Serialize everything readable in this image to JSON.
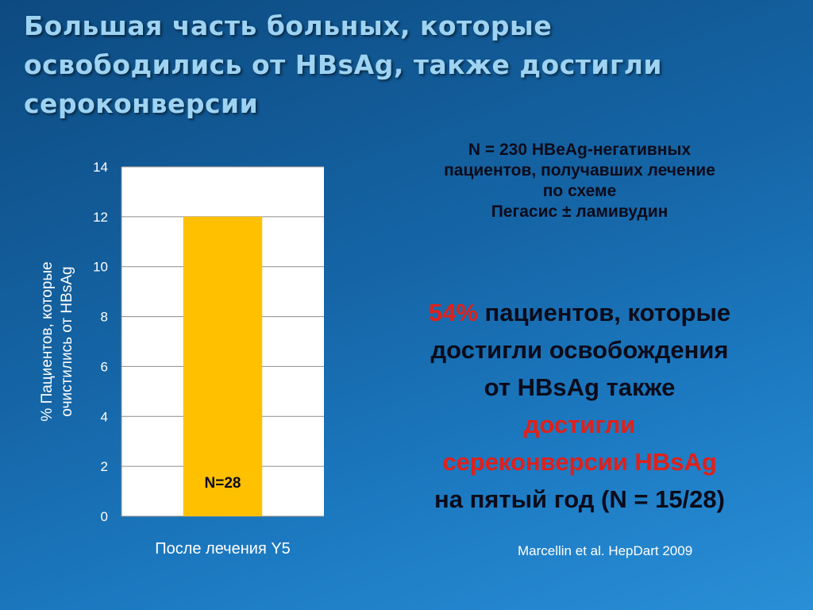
{
  "slide": {
    "title_lines": [
      "Большая часть больных, которые",
      "освободились от  HBsAg, также достигли",
      "сероконверсии"
    ],
    "info_lines": [
      "N = 230 HBeAg-негативных",
      "пациентов, получавших лечение",
      "по схеме",
      "Пегасис ± ламивудин"
    ],
    "highlight": {
      "pct": "54%",
      "line1_rest": " пациентов, которые",
      "line2": "достигли освобождения",
      "line3": "от HBsAg также",
      "line4": "достигли",
      "line5": "серeконверсии HBsAg",
      "line6": "на пятый год  (N = 15/28)"
    },
    "citation": "Marcellin et al. HepDart 2009"
  },
  "chart_data": {
    "type": "bar",
    "categories": [
      "После лечения Y5"
    ],
    "values": [
      12
    ],
    "data_labels": [
      "12%"
    ],
    "inner_labels": [
      "N=28"
    ],
    "xlabel": "После лечения Y5",
    "ylabel_lines": [
      "% Пациентов, которые",
      "очистились от  HBsAg"
    ],
    "ylim": [
      0,
      14
    ],
    "yticks": [
      0,
      2,
      4,
      6,
      8,
      10,
      12,
      14
    ],
    "grid": true,
    "bar_color": "#ffc000",
    "plot_bg": "#ffffff"
  }
}
